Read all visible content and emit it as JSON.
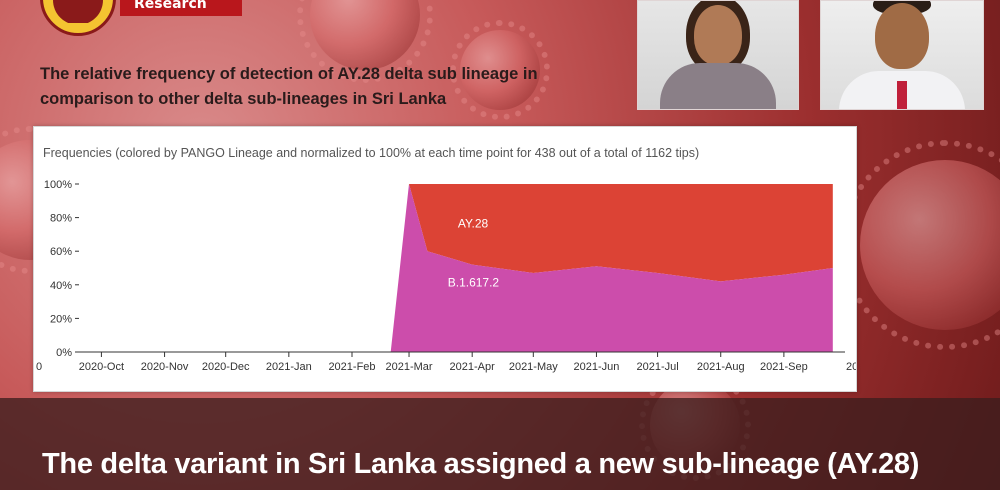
{
  "brand": {
    "tag_label": "Research"
  },
  "header": {
    "title": "The relative frequency of detection of AY.28 delta sub lineage in comparison to other delta sub-lineages in Sri Lanka"
  },
  "caption": "The delta variant in Sri Lanka assigned a new sub-lineage (AY.28)",
  "colors": {
    "ay28": "#dc4335",
    "b1617": "#cc4dab",
    "brand_red": "#b9171c"
  },
  "chart_data": {
    "type": "area",
    "title": "Frequencies (colored by PANGO Lineage and normalized to 100% at each time point for 438 out of a total of 1162 tips)",
    "xlabel": "",
    "ylabel": "",
    "ylim": [
      0,
      100
    ],
    "y_ticks": [
      "0%",
      "20%",
      "40%",
      "60%",
      "80%",
      "100%"
    ],
    "x_ticks": [
      "2020-Oct",
      "2020-Nov",
      "2020-Dec",
      "2021-Jan",
      "2021-Feb",
      "2021-Mar",
      "2021-Apr",
      "2021-May",
      "2021-Jun",
      "2021-Jul",
      "2021-Aug",
      "2021-Sep"
    ],
    "x_edge_left": "0",
    "x_edge_right": "20",
    "stacked": true,
    "x": [
      "2021-Feb-20",
      "2021-Mar-01",
      "2021-Mar-10",
      "2021-Apr-01",
      "2021-May-01",
      "2021-Jun-01",
      "2021-Jul-01",
      "2021-Aug-01",
      "2021-Sep-01",
      "2021-Sep-25"
    ],
    "series": [
      {
        "name": "B.1.617.2",
        "values": [
          0,
          100,
          60,
          52,
          47,
          51,
          47,
          42,
          46,
          50
        ]
      },
      {
        "name": "AY.28",
        "values": [
          0,
          0,
          40,
          48,
          53,
          49,
          53,
          58,
          54,
          50
        ]
      }
    ]
  }
}
